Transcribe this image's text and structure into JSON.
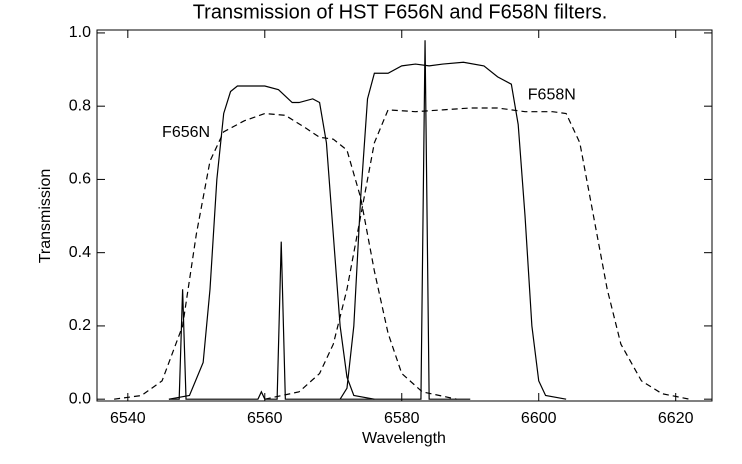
{
  "chart_data": {
    "type": "line",
    "title": "Transmission of HST F656N and F658N filters.",
    "x_label": "Wavelength",
    "y_label": "Transmission",
    "xlim": [
      6535.5,
      6625.3
    ],
    "ylim": [
      -0.005,
      1.008
    ],
    "xticks": [
      6540,
      6560,
      6580,
      6600,
      6620
    ],
    "yticks": [
      {
        "value": 0,
        "label": "0.0"
      },
      0.2,
      0.4,
      0.6,
      0.8,
      {
        "value": 1,
        "label": "1.0"
      }
    ],
    "annotations": [
      {
        "text": "F656N",
        "x": 6545.0,
        "y": 0.727
      },
      {
        "text": "F658N",
        "x": 6598.4,
        "y": 0.83
      }
    ],
    "series": [
      {
        "color": "#000000",
        "dashed": false,
        "x": [
          6546,
          6549,
          6551,
          6552,
          6553,
          6554,
          6555,
          6556,
          6560,
          6562,
          6564,
          6565,
          6567,
          6568,
          6569,
          6570,
          6571,
          6572,
          6573,
          6576
        ],
        "values": [
          0,
          0.01,
          0.1,
          0.3,
          0.6,
          0.78,
          0.84,
          0.855,
          0.855,
          0.845,
          0.81,
          0.81,
          0.82,
          0.81,
          0.7,
          0.45,
          0.2,
          0.06,
          0.01,
          0
        ]
      },
      {
        "color": "#000000",
        "dashed": false,
        "x": [
          6571,
          6572,
          6573,
          6574,
          6575,
          6576,
          6578,
          6580,
          6582,
          6584,
          6586,
          6589,
          6592,
          6594,
          6596,
          6597,
          6598,
          6599,
          6600,
          6601,
          6604
        ],
        "values": [
          0,
          0.03,
          0.2,
          0.55,
          0.82,
          0.89,
          0.89,
          0.91,
          0.915,
          0.91,
          0.915,
          0.92,
          0.91,
          0.88,
          0.86,
          0.75,
          0.5,
          0.2,
          0.05,
          0.01,
          0
        ]
      },
      {
        "color": "#000000",
        "dashed": true,
        "x": [
          6538,
          6542,
          6545,
          6548,
          6550,
          6552,
          6554,
          6557,
          6560,
          6563,
          6566,
          6568,
          6570,
          6572,
          6574,
          6576,
          6578,
          6580,
          6583,
          6588
        ],
        "values": [
          0,
          0.01,
          0.05,
          0.2,
          0.45,
          0.65,
          0.73,
          0.76,
          0.78,
          0.775,
          0.74,
          0.715,
          0.71,
          0.68,
          0.55,
          0.35,
          0.18,
          0.07,
          0.02,
          0
        ]
      },
      {
        "color": "#000000",
        "dashed": true,
        "x": [
          6560,
          6565,
          6568,
          6570,
          6572,
          6574,
          6576,
          6578,
          6582,
          6586,
          6590,
          6594,
          6598,
          6602,
          6604,
          6606,
          6608,
          6610,
          6612,
          6615,
          6618,
          6622
        ],
        "values": [
          0,
          0.02,
          0.07,
          0.15,
          0.3,
          0.5,
          0.7,
          0.79,
          0.785,
          0.79,
          0.795,
          0.795,
          0.785,
          0.785,
          0.78,
          0.7,
          0.5,
          0.3,
          0.15,
          0.05,
          0.015,
          0
        ]
      },
      {
        "color": "#000000",
        "dashed": false,
        "x": [
          6546,
          6547.5,
          6548,
          6548.5,
          6559,
          6559.5,
          6560,
          6561.8,
          6562.4,
          6563,
          6582.8,
          6583.4,
          6584,
          6590
        ],
        "values": [
          0,
          0,
          0.3,
          0,
          0,
          0.02,
          0,
          0,
          0.43,
          0,
          0,
          0.98,
          0,
          0
        ]
      }
    ]
  }
}
